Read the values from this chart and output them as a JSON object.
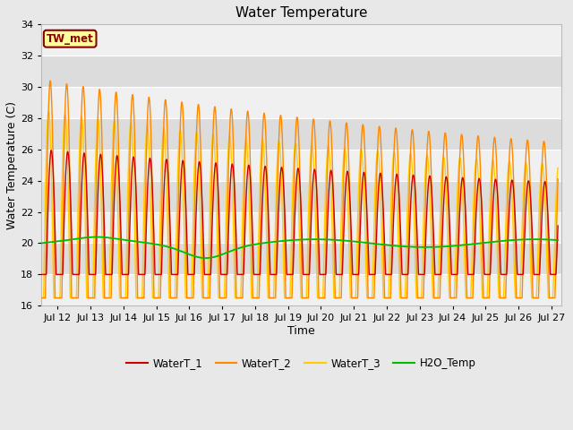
{
  "title": "Water Temperature",
  "xlabel": "Time",
  "ylabel": "Water Temperature (C)",
  "ylim": [
    16,
    34
  ],
  "xlim_days": [
    11.5,
    27.3
  ],
  "tick_days": [
    12,
    13,
    14,
    15,
    16,
    17,
    18,
    19,
    20,
    21,
    22,
    23,
    24,
    25,
    26,
    27
  ],
  "tick_labels": [
    "Jul 12",
    "Jul 13",
    "Jul 14",
    "Jul 15",
    "Jul 16",
    "Jul 17",
    "Jul 18",
    "Jul 19",
    "Jul 20",
    "Jul 21",
    "Jul 22",
    "Jul 23",
    "Jul 24",
    "Jul 25",
    "Jul 26",
    "Jul 27"
  ],
  "annotation_text": "TW_met",
  "annotation_bg": "#FFFF99",
  "annotation_border": "#8B0000",
  "line_colors": {
    "WaterT_1": "#CC0000",
    "WaterT_2": "#FF8800",
    "WaterT_3": "#FFCC00",
    "H2O_Temp": "#00BB00"
  },
  "bg_color": "#E8E8E8",
  "plot_bg": "#F0F0F0",
  "band_color": "#DCDCDC",
  "grid_color": "#FFFFFF",
  "title_fontsize": 11,
  "axis_fontsize": 9,
  "tick_fontsize": 8
}
